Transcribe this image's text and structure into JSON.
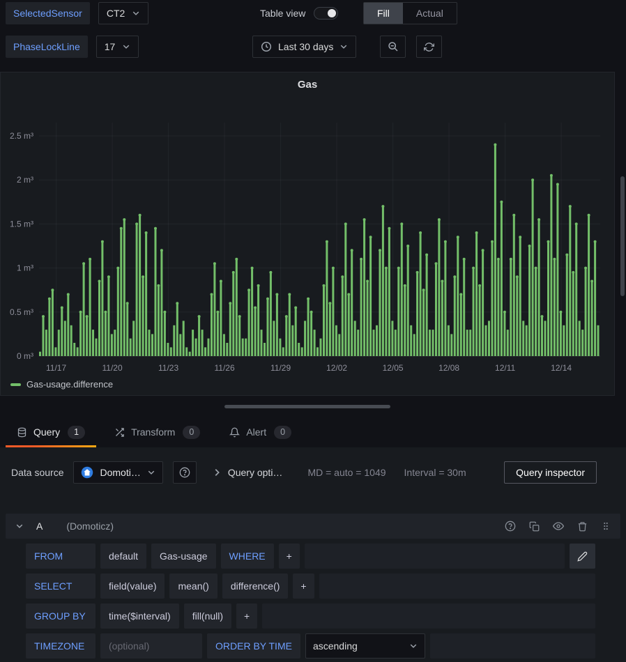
{
  "header": {
    "variables": [
      {
        "label": "SelectedSensor",
        "value": "CT2"
      },
      {
        "label": "PhaseLockLine",
        "value": "17"
      }
    ],
    "table_view_label": "Table view",
    "table_view_on": false,
    "display_mode": {
      "options": [
        "Fill",
        "Actual"
      ],
      "active": "Fill"
    },
    "time_range": "Last 30 days"
  },
  "chart_data": {
    "type": "bar",
    "title": "Gas",
    "series_name": "Gas-usage.difference",
    "unit": "m³",
    "color": "#73bf69",
    "grid": true,
    "legend_position": "bottom-left",
    "ylim": [
      0,
      2.65
    ],
    "yticks": [
      [
        0,
        "0 m³"
      ],
      [
        0.5,
        "0.5 m³"
      ],
      [
        1,
        "1 m³"
      ],
      [
        1.5,
        "1.5 m³"
      ],
      [
        2,
        "2 m³"
      ],
      [
        2.5,
        "2.5 m³"
      ]
    ],
    "xticks": [
      "11/17",
      "11/20",
      "11/23",
      "11/26",
      "11/29",
      "12/02",
      "12/05",
      "12/08",
      "12/11",
      "12/14"
    ],
    "x_range": [
      "11/16",
      "12/16"
    ],
    "values": [
      0.05,
      0.45,
      0.3,
      0.65,
      0.75,
      0.1,
      0.3,
      0.55,
      0.4,
      0.7,
      0.35,
      0.15,
      0.1,
      0.5,
      1.05,
      0.45,
      1.1,
      0.3,
      0.2,
      0.85,
      1.3,
      0.5,
      0.9,
      0.25,
      0.3,
      1.0,
      1.45,
      1.55,
      0.6,
      0.2,
      0.4,
      1.5,
      1.6,
      0.9,
      1.4,
      0.3,
      0.25,
      1.45,
      0.8,
      1.2,
      0.5,
      0.15,
      0.1,
      0.35,
      0.6,
      0.25,
      0.4,
      0.1,
      0.05,
      0.3,
      0.2,
      0.45,
      0.3,
      0.1,
      0.2,
      0.7,
      1.05,
      0.5,
      0.85,
      0.25,
      0.15,
      0.6,
      0.95,
      1.1,
      0.45,
      0.2,
      0.2,
      0.75,
      1.0,
      0.55,
      0.8,
      0.3,
      0.15,
      0.65,
      0.95,
      0.4,
      0.7,
      0.2,
      0.1,
      0.45,
      0.7,
      0.35,
      0.55,
      0.15,
      0.1,
      0.4,
      0.65,
      0.5,
      0.3,
      0.1,
      0.2,
      0.8,
      1.3,
      0.6,
      1.0,
      0.35,
      0.25,
      0.9,
      1.5,
      0.7,
      1.2,
      0.4,
      0.3,
      1.1,
      1.55,
      0.85,
      1.35,
      0.3,
      0.35,
      1.2,
      1.7,
      1.0,
      1.45,
      0.4,
      0.3,
      1.0,
      1.5,
      0.8,
      1.25,
      0.35,
      0.25,
      0.95,
      1.4,
      0.75,
      1.15,
      0.3,
      0.3,
      1.05,
      1.55,
      0.85,
      1.3,
      0.35,
      0.25,
      0.9,
      1.35,
      0.7,
      1.1,
      0.3,
      0.3,
      1.0,
      1.4,
      0.8,
      1.2,
      0.35,
      0.4,
      1.3,
      2.4,
      1.1,
      1.75,
      0.5,
      0.3,
      1.1,
      1.6,
      0.9,
      1.35,
      0.4,
      0.35,
      1.25,
      2.0,
      1.0,
      1.55,
      0.45,
      0.4,
      1.3,
      2.05,
      1.1,
      1.95,
      0.5,
      0.35,
      1.15,
      1.7,
      0.95,
      1.5,
      0.4,
      0.3,
      1.0,
      1.6,
      0.85,
      1.3,
      0.35
    ]
  },
  "tabs": [
    {
      "label": "Query",
      "count": "1"
    },
    {
      "label": "Transform",
      "count": "0"
    },
    {
      "label": "Alert",
      "count": "0"
    }
  ],
  "toolbar": {
    "data_source_label": "Data source",
    "data_source_value": "Domoti…",
    "query_options_label": "Query opti…",
    "max_data_points": "MD = auto = 1049",
    "interval": "Interval = 30m",
    "query_inspector_label": "Query inspector"
  },
  "query": {
    "ref": "A",
    "datasource_hint": "(Domoticz)",
    "from": {
      "keyword": "FROM",
      "segments": [
        "default",
        "Gas-usage"
      ],
      "where_label": "WHERE",
      "add_label": "+"
    },
    "select": {
      "keyword": "SELECT",
      "segments": [
        "field(value)",
        "mean()",
        "difference()"
      ],
      "add_label": "+"
    },
    "group_by": {
      "keyword": "GROUP BY",
      "segments": [
        "time($interval)",
        "fill(null)"
      ],
      "add_label": "+"
    },
    "timezone": {
      "keyword": "TIMEZONE",
      "placeholder": "(optional)"
    },
    "order_by": {
      "keyword": "ORDER BY TIME",
      "value": "ascending"
    }
  }
}
